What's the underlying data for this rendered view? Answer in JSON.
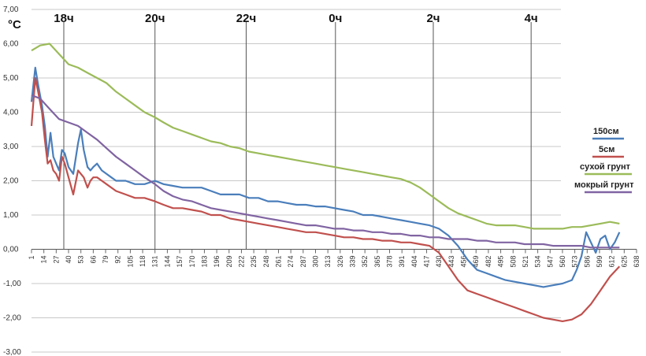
{
  "chart_data": {
    "type": "line",
    "unit_label": "°C",
    "yticks": [
      "7,00",
      "6,00",
      "5,00",
      "4,00",
      "3,00",
      "2,00",
      "1,00",
      "0,00",
      "-1,00",
      "-2,00",
      "-3,00"
    ],
    "ylim": [
      -3,
      7
    ],
    "xlim": [
      1,
      638
    ],
    "xticks": [
      "1",
      "14",
      "27",
      "40",
      "53",
      "66",
      "79",
      "92",
      "105",
      "118",
      "131",
      "144",
      "157",
      "170",
      "183",
      "196",
      "209",
      "222",
      "235",
      "248",
      "261",
      "274",
      "287",
      "300",
      "313",
      "326",
      "339",
      "352",
      "365",
      "378",
      "391",
      "404",
      "417",
      "430",
      "443",
      "456",
      "469",
      "482",
      "495",
      "508",
      "521",
      "534",
      "547",
      "560",
      "573",
      "586",
      "599",
      "612",
      "625",
      "638"
    ],
    "hour_labels": [
      {
        "label": "18ч",
        "x": 35
      },
      {
        "label": "20ч",
        "x": 131
      },
      {
        "label": "22ч",
        "x": 227
      },
      {
        "label": "0ч",
        "x": 321
      },
      {
        "label": "2ч",
        "x": 424
      },
      {
        "label": "4ч",
        "x": 527
      }
    ],
    "grid": true,
    "legend_position": "right",
    "series": [
      {
        "name": "150см",
        "color": "#4a7ebb",
        "x": [
          1,
          5,
          8,
          12,
          15,
          18,
          21,
          24,
          27,
          30,
          33,
          36,
          40,
          45,
          50,
          53,
          56,
          60,
          63,
          66,
          70,
          75,
          80,
          85,
          90,
          100,
          110,
          120,
          131,
          140,
          150,
          160,
          170,
          180,
          190,
          200,
          210,
          220,
          230,
          240,
          250,
          260,
          270,
          280,
          290,
          300,
          310,
          320,
          330,
          340,
          350,
          360,
          370,
          380,
          390,
          400,
          410,
          420,
          430,
          440,
          450,
          460,
          470,
          480,
          490,
          500,
          510,
          520,
          530,
          540,
          550,
          560,
          570,
          575,
          580,
          585,
          590,
          595,
          600,
          605,
          610,
          615,
          620
        ],
        "y": [
          4.3,
          5.3,
          4.8,
          4.2,
          3.6,
          2.7,
          3.4,
          2.7,
          2.5,
          2.3,
          2.9,
          2.8,
          2.4,
          2.2,
          3.1,
          3.5,
          2.9,
          2.4,
          2.3,
          2.4,
          2.5,
          2.3,
          2.2,
          2.1,
          2.0,
          2.0,
          1.9,
          1.9,
          2.0,
          1.9,
          1.85,
          1.8,
          1.8,
          1.8,
          1.7,
          1.6,
          1.6,
          1.6,
          1.5,
          1.5,
          1.4,
          1.4,
          1.35,
          1.3,
          1.3,
          1.25,
          1.25,
          1.2,
          1.15,
          1.1,
          1.0,
          1.0,
          0.95,
          0.9,
          0.85,
          0.8,
          0.75,
          0.7,
          0.6,
          0.4,
          0.1,
          -0.3,
          -0.6,
          -0.7,
          -0.8,
          -0.9,
          -0.95,
          -1.0,
          -1.05,
          -1.1,
          -1.05,
          -1.0,
          -0.9,
          -0.6,
          -0.2,
          0.5,
          0.2,
          -0.1,
          0.3,
          0.4,
          0.0,
          0.2,
          0.5
        ]
      },
      {
        "name": "5см",
        "color": "#c0504d",
        "x": [
          1,
          5,
          8,
          12,
          15,
          18,
          21,
          24,
          27,
          30,
          33,
          36,
          40,
          45,
          50,
          53,
          56,
          60,
          63,
          66,
          70,
          75,
          80,
          90,
          100,
          110,
          120,
          131,
          140,
          150,
          160,
          170,
          180,
          190,
          200,
          210,
          220,
          230,
          240,
          250,
          260,
          270,
          280,
          290,
          300,
          310,
          320,
          330,
          340,
          350,
          360,
          370,
          380,
          390,
          400,
          410,
          420,
          430,
          440,
          450,
          460,
          470,
          480,
          490,
          500,
          510,
          520,
          530,
          540,
          550,
          560,
          570,
          580,
          590,
          600,
          610,
          620
        ],
        "y": [
          3.6,
          5.0,
          4.6,
          4.0,
          3.2,
          2.5,
          2.6,
          2.3,
          2.2,
          2.0,
          2.7,
          2.5,
          2.1,
          1.6,
          2.3,
          2.2,
          2.1,
          1.8,
          2.0,
          2.1,
          2.1,
          2.0,
          1.9,
          1.7,
          1.6,
          1.5,
          1.5,
          1.4,
          1.3,
          1.2,
          1.2,
          1.15,
          1.1,
          1.0,
          1.0,
          0.9,
          0.85,
          0.8,
          0.75,
          0.7,
          0.65,
          0.6,
          0.55,
          0.5,
          0.5,
          0.45,
          0.4,
          0.35,
          0.35,
          0.3,
          0.3,
          0.25,
          0.25,
          0.2,
          0.2,
          0.15,
          0.1,
          -0.1,
          -0.5,
          -0.9,
          -1.2,
          -1.3,
          -1.4,
          -1.5,
          -1.6,
          -1.7,
          -1.8,
          -1.9,
          -2.0,
          -2.05,
          -2.1,
          -2.05,
          -1.9,
          -1.6,
          -1.2,
          -0.8,
          -0.5
        ]
      },
      {
        "name": "сухой грунт",
        "color": "#9bbb59",
        "x": [
          1,
          10,
          20,
          30,
          40,
          50,
          60,
          70,
          80,
          90,
          100,
          110,
          120,
          131,
          140,
          150,
          160,
          170,
          180,
          190,
          200,
          210,
          220,
          230,
          240,
          250,
          260,
          270,
          280,
          290,
          300,
          310,
          320,
          330,
          340,
          350,
          360,
          370,
          380,
          390,
          400,
          410,
          420,
          430,
          440,
          450,
          460,
          470,
          480,
          490,
          500,
          510,
          520,
          530,
          540,
          550,
          560,
          570,
          580,
          590,
          600,
          610,
          620
        ],
        "y": [
          5.8,
          5.95,
          6.0,
          5.7,
          5.4,
          5.3,
          5.15,
          5.0,
          4.85,
          4.6,
          4.4,
          4.2,
          4.0,
          3.85,
          3.7,
          3.55,
          3.45,
          3.35,
          3.25,
          3.15,
          3.1,
          3.0,
          2.95,
          2.85,
          2.8,
          2.75,
          2.7,
          2.65,
          2.6,
          2.55,
          2.5,
          2.45,
          2.4,
          2.35,
          2.3,
          2.25,
          2.2,
          2.15,
          2.1,
          2.05,
          1.95,
          1.8,
          1.6,
          1.4,
          1.2,
          1.05,
          0.95,
          0.85,
          0.75,
          0.7,
          0.7,
          0.7,
          0.65,
          0.6,
          0.6,
          0.6,
          0.6,
          0.65,
          0.65,
          0.7,
          0.75,
          0.8,
          0.75
        ]
      },
      {
        "name": "мокрый грунт",
        "color": "#8064a2",
        "x": [
          1,
          10,
          20,
          30,
          40,
          50,
          60,
          70,
          80,
          90,
          100,
          110,
          120,
          131,
          140,
          150,
          160,
          170,
          180,
          190,
          200,
          210,
          220,
          230,
          240,
          250,
          260,
          270,
          280,
          290,
          300,
          310,
          320,
          330,
          340,
          350,
          360,
          370,
          380,
          390,
          400,
          410,
          420,
          430,
          440,
          450,
          460,
          470,
          480,
          490,
          500,
          510,
          520,
          530,
          540,
          550,
          560,
          570,
          580,
          590,
          600,
          610,
          620
        ],
        "y": [
          4.5,
          4.4,
          4.1,
          3.8,
          3.7,
          3.6,
          3.4,
          3.2,
          2.95,
          2.7,
          2.5,
          2.3,
          2.1,
          1.9,
          1.7,
          1.55,
          1.45,
          1.4,
          1.3,
          1.2,
          1.15,
          1.1,
          1.05,
          1.0,
          0.95,
          0.9,
          0.85,
          0.8,
          0.75,
          0.7,
          0.7,
          0.65,
          0.6,
          0.6,
          0.55,
          0.55,
          0.5,
          0.5,
          0.45,
          0.45,
          0.4,
          0.4,
          0.35,
          0.35,
          0.3,
          0.3,
          0.3,
          0.25,
          0.25,
          0.2,
          0.2,
          0.2,
          0.15,
          0.15,
          0.15,
          0.1,
          0.1,
          0.1,
          0.1,
          0.05,
          0.05,
          0.05,
          0.05
        ]
      }
    ]
  }
}
